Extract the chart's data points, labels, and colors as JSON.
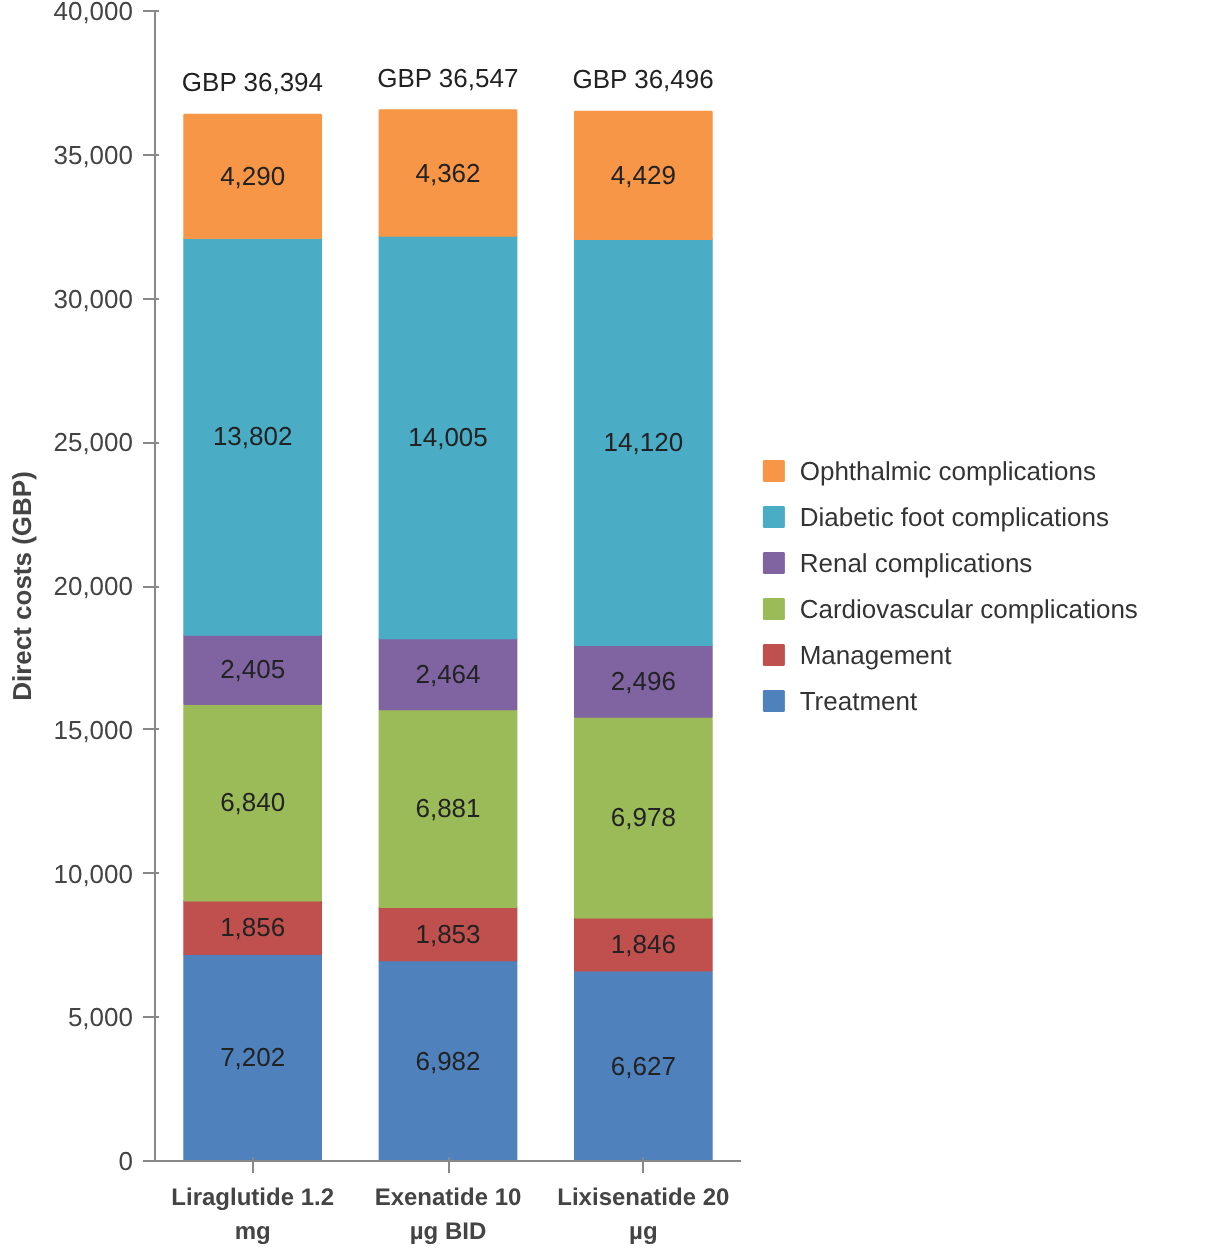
{
  "chart_data": {
    "type": "bar",
    "stacked": true,
    "categories": [
      "Liraglutide 1.2 mg",
      "Exenatide 10 µg BID",
      "Lixisenatide 20 µg"
    ],
    "ylabel": "Direct costs (GBP)",
    "ylim": [
      0,
      40000
    ],
    "yticks": [
      0,
      {
        "value": 5000,
        "label": "5,000"
      },
      {
        "value": 10000,
        "label": "10,000"
      },
      {
        "value": 15000,
        "label": "15,000"
      },
      {
        "value": 20000,
        "label": "20,000"
      },
      {
        "value": 25000,
        "label": "25,000"
      },
      {
        "value": 30000,
        "label": "30,000"
      },
      {
        "value": 35000,
        "label": "35,000"
      },
      {
        "value": 40000,
        "label": "40,000"
      }
    ],
    "series": [
      {
        "name": "Treatment",
        "color": "#4f81bd",
        "values": [
          7202,
          6982,
          6627
        ],
        "value_labels": [
          "7,202",
          "6,982",
          "6,627"
        ]
      },
      {
        "name": "Management",
        "color": "#c0504d",
        "values": [
          1856,
          1853,
          1846
        ],
        "value_labels": [
          "1,856",
          "1,853",
          "1,846"
        ]
      },
      {
        "name": "Cardiovascular complications",
        "color": "#9bbb59",
        "values": [
          6840,
          6881,
          6978
        ],
        "value_labels": [
          "6,840",
          "6,881",
          "6,978"
        ]
      },
      {
        "name": "Renal complications",
        "color": "#8064a2",
        "values": [
          2405,
          2464,
          2496
        ],
        "value_labels": [
          "2,405",
          "2,464",
          "2,496"
        ]
      },
      {
        "name": "Diabetic foot complications",
        "color": "#4bacc6",
        "values": [
          13802,
          14005,
          14120
        ],
        "value_labels": [
          "13,802",
          "14,005",
          "14,120"
        ]
      },
      {
        "name": "Ophthalmic complications",
        "color": "#f79646",
        "values": [
          4290,
          4362,
          4429
        ],
        "value_labels": [
          "4,290",
          "4,362",
          "4,429"
        ]
      }
    ],
    "totals": [
      "GBP 36,394",
      "GBP 36,547",
      "GBP 36,496"
    ],
    "legend": "right",
    "grid": false
  }
}
